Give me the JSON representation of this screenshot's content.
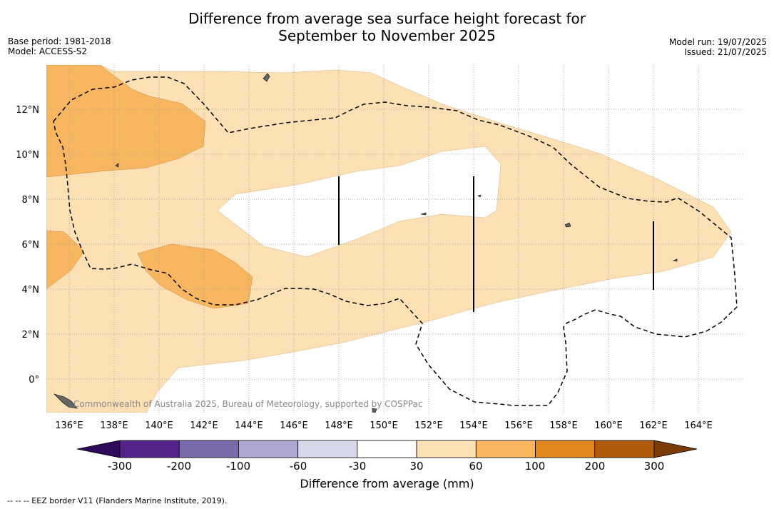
{
  "title_line1": "Difference from average sea surface height forecast for",
  "title_line2": "September to November 2025",
  "base_period": "Base period: 1981-2018",
  "model": "Model: ACCESS-S2",
  "model_run": "Model run: 19/07/2025",
  "issued": "Issued: 21/07/2025",
  "copyright": "Commonwealth of Australia 2025, Bureau of Meteorology, supported by COSPPac",
  "legend_note": "--  --  -- EEZ border V11 (Flanders Marine Institute, 2019).",
  "lon_labels": [
    "136°E",
    "138°E",
    "140°E",
    "142°E",
    "144°E",
    "146°E",
    "148°E",
    "150°E",
    "152°E",
    "154°E",
    "156°E",
    "158°E",
    "160°E",
    "162°E",
    "164°E"
  ],
  "lat_labels": [
    "12°N",
    "10°N",
    "8°N",
    "6°N",
    "4°N",
    "2°N",
    "0°"
  ],
  "colorbar": {
    "title": "Difference from average (mm)",
    "tick_labels": [
      "-300",
      "-200",
      "-100",
      "-60",
      "-30",
      "30",
      "60",
      "100",
      "200",
      "300"
    ],
    "colors": [
      "#2d0a5a",
      "#54248b",
      "#7b6aab",
      "#aca7d1",
      "#d7d7ea",
      "#ffffff",
      "#fde0b4",
      "#f9b660",
      "#e0861e",
      "#b05a0d",
      "#7a3b06"
    ]
  }
}
